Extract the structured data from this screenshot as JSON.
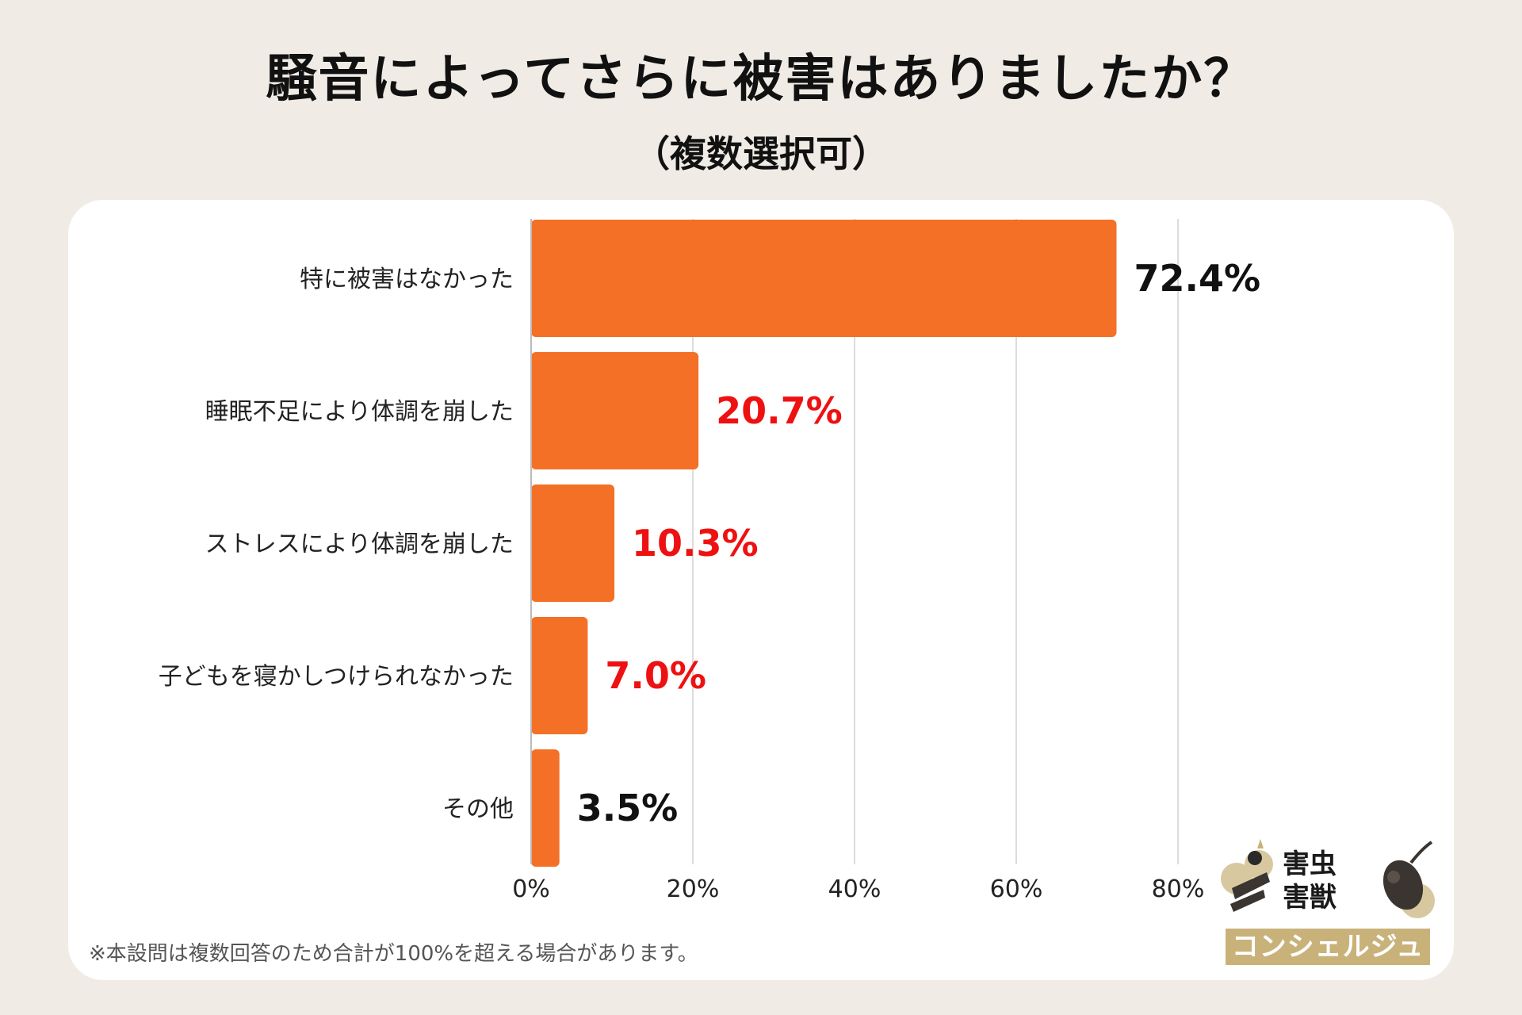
{
  "title": "騒音によってさらに被害はありましたか？",
  "subtitle": "（複数選択可）",
  "footnote": "※本設問は複数回答のため合計が100%を超える場合があります。",
  "logo": {
    "line1": "害虫",
    "line2": "害獣",
    "band": "コンシェルジュ"
  },
  "colors": {
    "bar": "#f37026",
    "label_dark": "#111111",
    "label_red": "#ee1111",
    "grid": "#dcdcdc",
    "background": "#f0ece5"
  },
  "chart_data": {
    "type": "bar",
    "orientation": "horizontal",
    "categories": [
      "特に被害はなかった",
      "睡眠不足により体調を崩した",
      "ストレスにより体調を崩した",
      "子どもを寝かしつけられなかった",
      "その他"
    ],
    "values": [
      72.4,
      20.7,
      10.3,
      7.0,
      3.5
    ],
    "value_labels": [
      "72.4%",
      "20.7%",
      "10.3%",
      "7.0%",
      "3.5%"
    ],
    "value_label_colors": [
      "#111111",
      "#ee1111",
      "#ee1111",
      "#ee1111",
      "#111111"
    ],
    "x_ticks": [
      "0%",
      "20%",
      "40%",
      "60%",
      "80%"
    ],
    "x_tick_values": [
      0,
      20,
      40,
      60,
      80
    ],
    "xlim": [
      0,
      80
    ],
    "grid": true
  }
}
